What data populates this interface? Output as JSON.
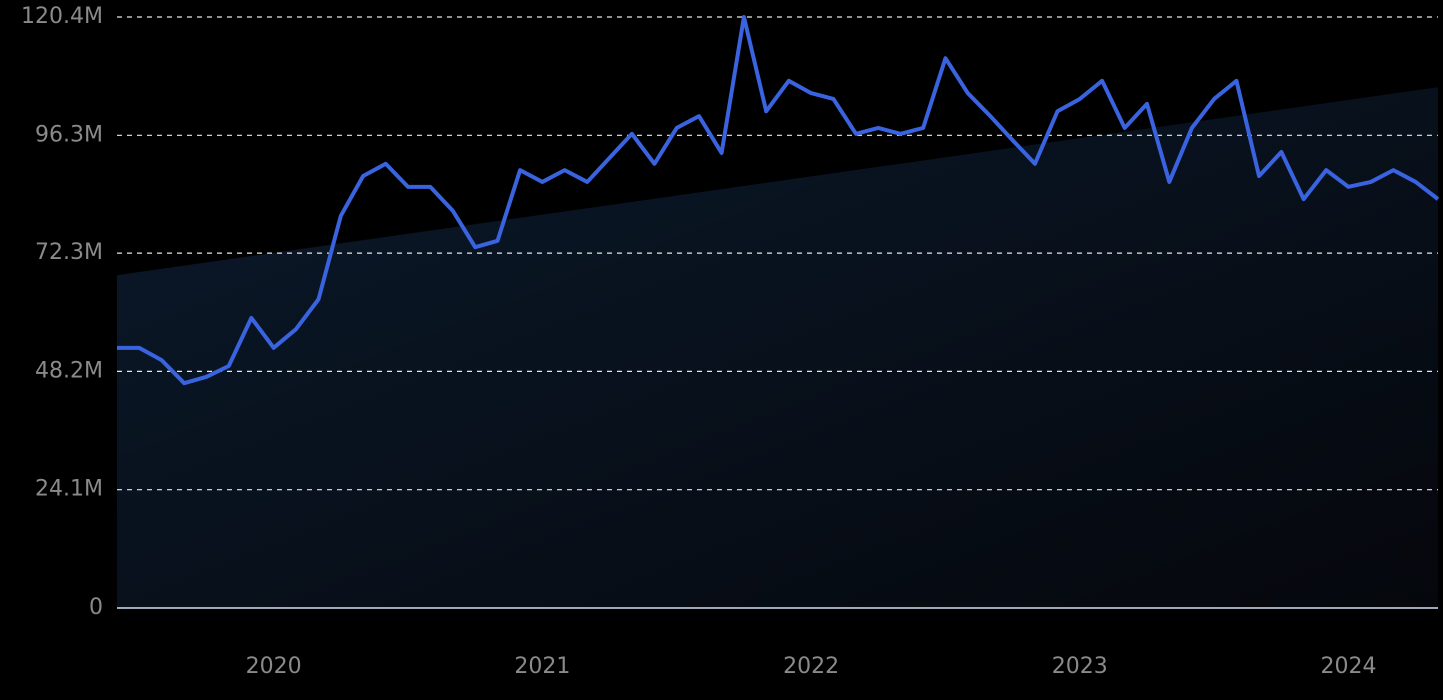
{
  "chart_data": {
    "type": "line",
    "x": [
      2019.417,
      2019.5,
      2019.583,
      2019.667,
      2019.75,
      2019.833,
      2019.917,
      2020.0,
      2020.083,
      2020.167,
      2020.25,
      2020.333,
      2020.417,
      2020.5,
      2020.583,
      2020.667,
      2020.75,
      2020.833,
      2020.917,
      2021.0,
      2021.083,
      2021.167,
      2021.25,
      2021.333,
      2021.417,
      2021.5,
      2021.583,
      2021.667,
      2021.75,
      2021.833,
      2021.917,
      2022.0,
      2022.083,
      2022.167,
      2022.25,
      2022.333,
      2022.417,
      2022.5,
      2022.583,
      2022.667,
      2022.75,
      2022.833,
      2022.917,
      2023.0,
      2023.083,
      2023.167,
      2023.25,
      2023.333,
      2023.417,
      2023.5,
      2023.583,
      2023.667,
      2023.75,
      2023.833,
      2023.917,
      2024.0,
      2024.083,
      2024.167,
      2024.25,
      2024.333
    ],
    "series": [
      {
        "color": "#3a63e0",
        "values": [
          53.0,
          53.0,
          50.5,
          45.8,
          47.1,
          49.3,
          59.1,
          53.0,
          56.8,
          62.9,
          79.9,
          88.0,
          90.5,
          85.8,
          85.8,
          80.9,
          73.5,
          74.8,
          89.2,
          86.8,
          89.2,
          86.8,
          91.7,
          96.6,
          90.5,
          97.8,
          100.2,
          92.7,
          120.4,
          101.2,
          107.4,
          104.9,
          103.7,
          96.6,
          97.8,
          96.6,
          97.8,
          112.0,
          104.9,
          100.2,
          95.3,
          90.5,
          101.2,
          103.7,
          107.4,
          97.8,
          102.7,
          86.8,
          97.8,
          103.7,
          107.4,
          88.0,
          92.9,
          83.3,
          89.2,
          85.8,
          86.8,
          89.2,
          86.8,
          83.3
        ]
      }
    ],
    "trend": {
      "x": [
        2019.417,
        2024.333
      ],
      "values": [
        67.8,
        106.1
      ],
      "color": "#0a1a2e"
    },
    "xlim": [
      2019.417,
      2024.333
    ],
    "xticks": [
      2020,
      2021,
      2022,
      2023,
      2024
    ],
    "ylim": [
      0,
      120.4
    ],
    "yticks": [
      {
        "value": 0,
        "label": "0"
      },
      {
        "value": 24.1,
        "label": "24.1M"
      },
      {
        "value": 48.2,
        "label": "48.2M"
      },
      {
        "value": 72.3,
        "label": "72.3M"
      },
      {
        "value": 96.3,
        "label": "96.3M"
      },
      {
        "value": 120.4,
        "label": "120.4M"
      }
    ],
    "grid": true
  }
}
